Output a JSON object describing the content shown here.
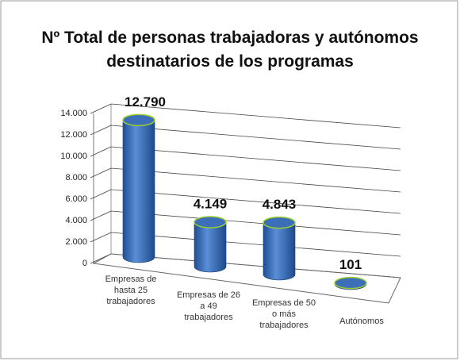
{
  "chart_data": {
    "type": "bar",
    "title": "Nº Total de personas trabajadoras y autónomos destinatarios de los programas",
    "categories": [
      "Empresas de\nhasta 25\ntrabajadores",
      "Empresas de 26\na 49\ntrabajadores",
      "Empresas de 50\no más\ntrabajadores",
      "Autónomos"
    ],
    "values": [
      12790,
      4149,
      4843,
      101
    ],
    "value_labels": [
      "12.790",
      "4.149",
      "4.843",
      "101"
    ],
    "color": "#3f6fb5",
    "ylim": [
      0,
      14000
    ],
    "yticks": [
      {
        "value": 0,
        "label": "0"
      },
      {
        "value": 2000,
        "label": "2.000"
      },
      {
        "value": 4000,
        "label": "4.000"
      },
      {
        "value": 6000,
        "label": "6.000"
      },
      {
        "value": 8000,
        "label": "8.000"
      },
      {
        "value": 10000,
        "label": "10.000"
      },
      {
        "value": 12000,
        "label": "12.000"
      },
      {
        "value": 14000,
        "label": "14.000"
      }
    ],
    "grid": true
  }
}
